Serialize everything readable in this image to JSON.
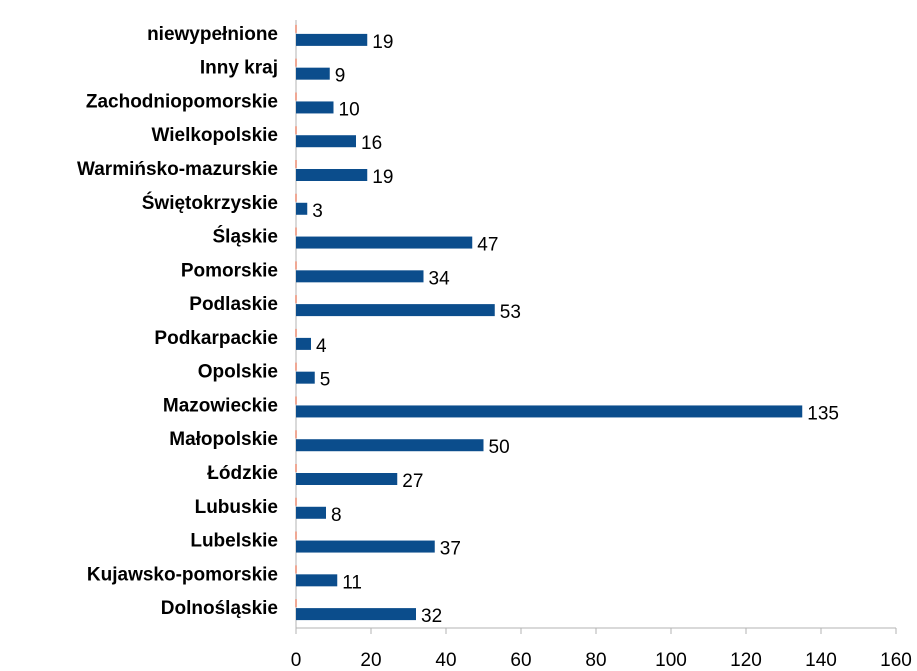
{
  "chart_data": {
    "type": "barh",
    "categories": [
      "Dolnośląskie",
      "Kujawsko-pomorskie",
      "Lubelskie",
      "Lubuskie",
      "Łódzkie",
      "Małopolskie",
      "Mazowieckie",
      "Opolskie",
      "Podkarpackie",
      "Podlaskie",
      "Pomorskie",
      "Śląskie",
      "Świętokrzyskie",
      "Warmińsko-mazurskie",
      "Wielkopolskie",
      "Zachodniopomorskie",
      "Inny kraj",
      "niewypełnione"
    ],
    "values": [
      32,
      11,
      37,
      8,
      27,
      50,
      135,
      5,
      4,
      53,
      34,
      47,
      3,
      19,
      16,
      10,
      9,
      19
    ],
    "color": "#0b4d8c",
    "xlim": [
      0,
      160
    ],
    "xticks": [
      0,
      20,
      40,
      60,
      80,
      100,
      120,
      140,
      160
    ],
    "grid": false
  }
}
